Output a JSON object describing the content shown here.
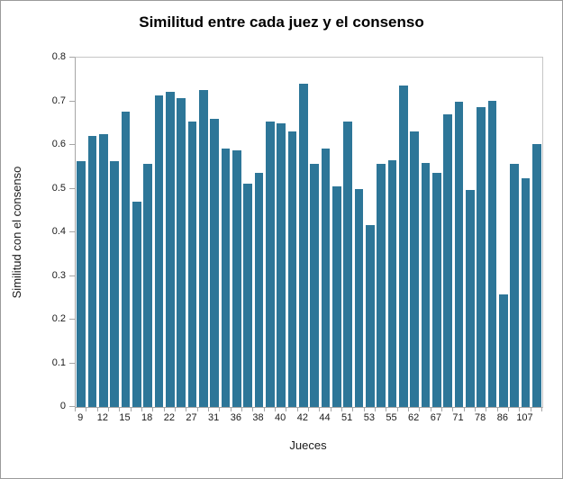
{
  "chart_data": {
    "type": "bar",
    "title": "Similitud entre cada juez y el consenso",
    "xlabel": "Jueces",
    "ylabel": "Similitud con el consenso",
    "ylim": [
      0,
      0.8
    ],
    "ytick_labels": [
      "0.8",
      "0.7",
      "0.6",
      "0.5",
      "0.4",
      "0.3",
      "0.2",
      "0.1",
      "0"
    ],
    "x_tick_labels": [
      "9",
      "12",
      "15",
      "18",
      "22",
      "27",
      "31",
      "36",
      "38",
      "40",
      "42",
      "44",
      "51",
      "53",
      "55",
      "62",
      "67",
      "71",
      "78",
      "86",
      "107"
    ],
    "x_label_every": 2,
    "values": [
      0.562,
      0.62,
      0.624,
      0.563,
      0.676,
      0.471,
      0.556,
      0.713,
      0.722,
      0.708,
      0.654,
      0.726,
      0.66,
      0.591,
      0.588,
      0.511,
      0.536,
      0.653,
      0.65,
      0.631,
      0.741,
      0.557,
      0.592,
      0.506,
      0.654,
      0.5,
      0.417,
      0.556,
      0.565,
      0.737,
      0.63,
      0.558,
      0.536,
      0.67,
      0.699,
      0.497,
      0.687,
      0.701,
      0.257,
      0.556,
      0.523,
      0.602
    ],
    "grid": false,
    "legend": "none",
    "bar_color": "#2d7698",
    "axis_color": "#a6a6a6",
    "plot_border_color": "#c6c6c6"
  }
}
